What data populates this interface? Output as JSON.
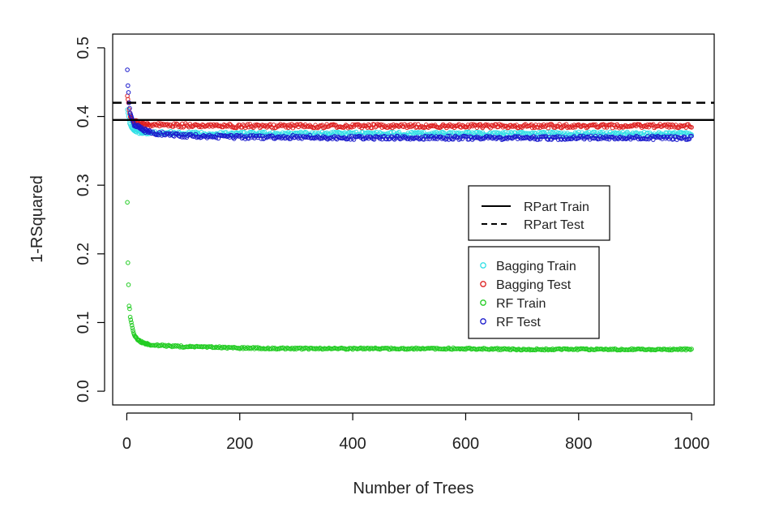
{
  "chart_data": {
    "type": "scatter",
    "xlabel": "Number of Trees",
    "ylabel": "1-RSquared",
    "xlim": [
      -25,
      1040
    ],
    "ylim": [
      -0.02,
      0.52
    ],
    "x_ticks": [
      0,
      200,
      400,
      600,
      800,
      1000
    ],
    "x_tick_labels": [
      "0",
      "200",
      "400",
      "600",
      "800",
      "1000"
    ],
    "y_ticks": [
      0.0,
      0.1,
      0.2,
      0.3,
      0.4,
      0.5
    ],
    "y_tick_labels": [
      "0.0",
      "0.1",
      "0.2",
      "0.3",
      "0.4",
      "0.5"
    ],
    "grid": false,
    "reference_lines": [
      {
        "name": "RPart Train",
        "y": 0.395,
        "style": "solid",
        "color": "#000000"
      },
      {
        "name": "RPart Test",
        "y": 0.42,
        "style": "dashed",
        "color": "#000000"
      }
    ],
    "series": [
      {
        "name": "Bagging Train",
        "color": "#33e0e6",
        "x": [
          1,
          2,
          3,
          4,
          5,
          6,
          8,
          10,
          12,
          15,
          20,
          25,
          30,
          40,
          50,
          75,
          100,
          150,
          200,
          300,
          400,
          500,
          600,
          700,
          800,
          900,
          1000
        ],
        "y": [
          0.41,
          0.405,
          0.4,
          0.395,
          0.39,
          0.388,
          0.384,
          0.382,
          0.38,
          0.379,
          0.378,
          0.377,
          0.377,
          0.376,
          0.376,
          0.376,
          0.375,
          0.375,
          0.375,
          0.375,
          0.375,
          0.375,
          0.375,
          0.375,
          0.375,
          0.375,
          0.375
        ]
      },
      {
        "name": "Bagging Test",
        "color": "#dd2020",
        "x": [
          1,
          2,
          3,
          4,
          5,
          6,
          8,
          10,
          12,
          15,
          20,
          25,
          30,
          40,
          50,
          75,
          100,
          150,
          200,
          300,
          400,
          500,
          600,
          700,
          800,
          900,
          1000
        ],
        "y": [
          0.43,
          0.425,
          0.42,
          0.41,
          0.405,
          0.4,
          0.397,
          0.395,
          0.393,
          0.392,
          0.391,
          0.39,
          0.389,
          0.388,
          0.388,
          0.387,
          0.387,
          0.387,
          0.386,
          0.386,
          0.386,
          0.386,
          0.386,
          0.386,
          0.386,
          0.386,
          0.386
        ]
      },
      {
        "name": "RF Train",
        "color": "#22cc22",
        "x": [
          1,
          2,
          3,
          4,
          5,
          6,
          8,
          10,
          12,
          15,
          20,
          25,
          30,
          40,
          50,
          75,
          100,
          150,
          200,
          300,
          400,
          500,
          600,
          700,
          800,
          900,
          1000
        ],
        "y": [
          0.275,
          0.187,
          0.155,
          0.124,
          0.12,
          0.108,
          0.1,
          0.092,
          0.085,
          0.08,
          0.075,
          0.072,
          0.07,
          0.068,
          0.067,
          0.066,
          0.065,
          0.064,
          0.063,
          0.062,
          0.062,
          0.062,
          0.062,
          0.061,
          0.061,
          0.061,
          0.061
        ]
      },
      {
        "name": "RF Test",
        "color": "#1a1acc",
        "x": [
          1,
          2,
          3,
          4,
          5,
          6,
          8,
          10,
          12,
          15,
          20,
          25,
          30,
          40,
          50,
          75,
          100,
          150,
          200,
          300,
          400,
          500,
          600,
          700,
          800,
          900,
          1000
        ],
        "y": [
          0.468,
          0.445,
          0.435,
          0.42,
          0.412,
          0.405,
          0.4,
          0.395,
          0.39,
          0.387,
          0.385,
          0.382,
          0.38,
          0.378,
          0.376,
          0.374,
          0.372,
          0.371,
          0.37,
          0.37,
          0.369,
          0.369,
          0.369,
          0.369,
          0.369,
          0.369,
          0.369
        ]
      }
    ],
    "legends": [
      {
        "position": "right-center",
        "entries": [
          "RPart Train",
          "RPart Test"
        ]
      },
      {
        "position": "right-lower",
        "entries": [
          "Bagging Train",
          "Bagging Test",
          "RF Train",
          "RF Test"
        ]
      }
    ]
  }
}
